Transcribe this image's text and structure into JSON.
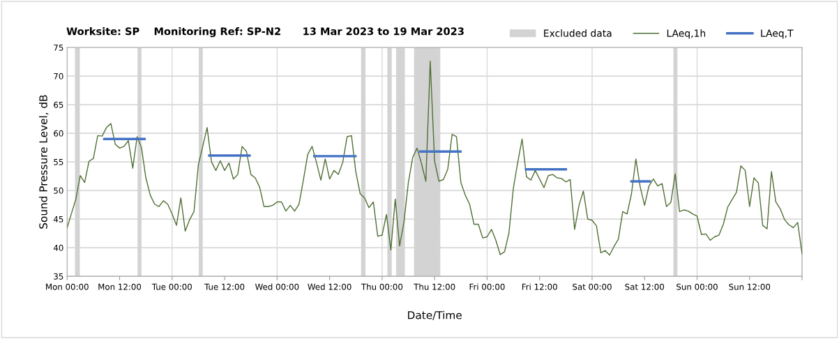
{
  "chart_data": {
    "type": "line",
    "title": "Worksite: SP    Monitoring Ref: SP-N2      13 Mar 2023 to 19 Mar 2023",
    "xlabel": "Date/Time",
    "ylabel": "Sound Pressure Level, dB",
    "xlim": [
      "2023-03-13T00:00",
      "2023-03-20T00:00"
    ],
    "ylim": [
      35,
      75
    ],
    "xticks": [
      {
        "value": "2023-03-13T00:00",
        "label": "Mon 00:00"
      },
      {
        "value": "2023-03-13T12:00",
        "label": "Mon 12:00"
      },
      {
        "value": "2023-03-14T00:00",
        "label": "Tue 00:00"
      },
      {
        "value": "2023-03-14T12:00",
        "label": "Tue 12:00"
      },
      {
        "value": "2023-03-15T00:00",
        "label": "Wed 00:00"
      },
      {
        "value": "2023-03-15T12:00",
        "label": "Wed 12:00"
      },
      {
        "value": "2023-03-16T00:00",
        "label": "Thu 00:00"
      },
      {
        "value": "2023-03-16T12:00",
        "label": "Thu 12:00"
      },
      {
        "value": "2023-03-17T00:00",
        "label": "Fri 00:00"
      },
      {
        "value": "2023-03-17T12:00",
        "label": "Fri 12:00"
      },
      {
        "value": "2023-03-18T00:00",
        "label": "Sat 00:00"
      },
      {
        "value": "2023-03-18T12:00",
        "label": "Sat 12:00"
      },
      {
        "value": "2023-03-19T00:00",
        "label": "Sun 00:00"
      },
      {
        "value": "2023-03-19T12:00",
        "label": "Sun 12:00"
      },
      {
        "value": "2023-03-20T00:00",
        "label": null
      }
    ],
    "yticks": [
      35,
      40,
      45,
      50,
      55,
      60,
      65,
      70,
      75
    ],
    "grid": true,
    "legend": "top right",
    "bands": [
      {
        "axis": "x",
        "from": "2023-03-13T01:48",
        "to": "2023-03-13T02:54",
        "label": "Excluded data",
        "color": "#d3d3d3"
      },
      {
        "axis": "x",
        "from": "2023-03-13T16:06",
        "to": "2023-03-13T17:00",
        "color": "#d3d3d3"
      },
      {
        "axis": "x",
        "from": "2023-03-14T06:06",
        "to": "2023-03-14T07:00",
        "color": "#d3d3d3"
      },
      {
        "axis": "x",
        "from": "2023-03-15T19:12",
        "to": "2023-03-15T20:12",
        "color": "#d3d3d3"
      },
      {
        "axis": "x",
        "from": "2023-03-16T01:12",
        "to": "2023-03-16T02:12",
        "color": "#d3d3d3"
      },
      {
        "axis": "x",
        "from": "2023-03-16T03:12",
        "to": "2023-03-16T05:12",
        "color": "#d3d3d3"
      },
      {
        "axis": "x",
        "from": "2023-03-16T07:18",
        "to": "2023-03-16T13:18",
        "color": "#d3d3d3"
      },
      {
        "axis": "x",
        "from": "2023-03-18T18:36",
        "to": "2023-03-18T19:30",
        "color": "#d3d3d3"
      }
    ],
    "series": [
      {
        "name": "LAeq,1h",
        "color": "#4f6f33",
        "x": [
          "2023-03-13T00:00",
          "2023-03-13T01:00",
          "2023-03-13T02:00",
          "2023-03-13T03:00",
          "2023-03-13T04:00",
          "2023-03-13T05:00",
          "2023-03-13T06:00",
          "2023-03-13T07:00",
          "2023-03-13T08:00",
          "2023-03-13T09:00",
          "2023-03-13T10:00",
          "2023-03-13T11:00",
          "2023-03-13T12:00",
          "2023-03-13T13:00",
          "2023-03-13T14:00",
          "2023-03-13T15:00",
          "2023-03-13T16:00",
          "2023-03-13T17:00",
          "2023-03-13T18:00",
          "2023-03-13T19:00",
          "2023-03-13T20:00",
          "2023-03-13T21:00",
          "2023-03-13T22:00",
          "2023-03-13T23:00",
          "2023-03-14T00:00",
          "2023-03-14T01:00",
          "2023-03-14T02:00",
          "2023-03-14T03:00",
          "2023-03-14T04:00",
          "2023-03-14T05:00",
          "2023-03-14T06:00",
          "2023-03-14T07:00",
          "2023-03-14T08:00",
          "2023-03-14T09:00",
          "2023-03-14T10:00",
          "2023-03-14T11:00",
          "2023-03-14T12:00",
          "2023-03-14T13:00",
          "2023-03-14T14:00",
          "2023-03-14T15:00",
          "2023-03-14T16:00",
          "2023-03-14T17:00",
          "2023-03-14T18:00",
          "2023-03-14T19:00",
          "2023-03-14T20:00",
          "2023-03-14T21:00",
          "2023-03-14T22:00",
          "2023-03-14T23:00",
          "2023-03-15T00:00",
          "2023-03-15T01:00",
          "2023-03-15T02:00",
          "2023-03-15T03:00",
          "2023-03-15T04:00",
          "2023-03-15T05:00",
          "2023-03-15T06:00",
          "2023-03-15T07:00",
          "2023-03-15T08:00",
          "2023-03-15T09:00",
          "2023-03-15T10:00",
          "2023-03-15T11:00",
          "2023-03-15T12:00",
          "2023-03-15T13:00",
          "2023-03-15T14:00",
          "2023-03-15T15:00",
          "2023-03-15T16:00",
          "2023-03-15T17:00",
          "2023-03-15T18:00",
          "2023-03-15T19:00",
          "2023-03-15T20:00",
          "2023-03-15T21:00",
          "2023-03-15T22:00",
          "2023-03-15T23:00",
          "2023-03-16T00:00",
          "2023-03-16T01:00",
          "2023-03-16T02:00",
          "2023-03-16T03:00",
          "2023-03-16T04:00",
          "2023-03-16T05:00",
          "2023-03-16T06:00",
          "2023-03-16T07:00",
          "2023-03-16T08:00",
          "2023-03-16T09:00",
          "2023-03-16T10:00",
          "2023-03-16T11:00",
          "2023-03-16T12:00",
          "2023-03-16T13:00",
          "2023-03-16T14:00",
          "2023-03-16T15:00",
          "2023-03-16T16:00",
          "2023-03-16T17:00",
          "2023-03-16T18:00",
          "2023-03-16T19:00",
          "2023-03-16T20:00",
          "2023-03-16T21:00",
          "2023-03-16T22:00",
          "2023-03-16T23:00",
          "2023-03-17T00:00",
          "2023-03-17T01:00",
          "2023-03-17T02:00",
          "2023-03-17T03:00",
          "2023-03-17T04:00",
          "2023-03-17T05:00",
          "2023-03-17T06:00",
          "2023-03-17T07:00",
          "2023-03-17T08:00",
          "2023-03-17T09:00",
          "2023-03-17T10:00",
          "2023-03-17T11:00",
          "2023-03-17T12:00",
          "2023-03-17T13:00",
          "2023-03-17T14:00",
          "2023-03-17T15:00",
          "2023-03-17T16:00",
          "2023-03-17T17:00",
          "2023-03-17T18:00",
          "2023-03-17T19:00",
          "2023-03-17T20:00",
          "2023-03-17T21:00",
          "2023-03-17T22:00",
          "2023-03-17T23:00",
          "2023-03-18T00:00",
          "2023-03-18T01:00",
          "2023-03-18T02:00",
          "2023-03-18T03:00",
          "2023-03-18T04:00",
          "2023-03-18T05:00",
          "2023-03-18T06:00",
          "2023-03-18T07:00",
          "2023-03-18T08:00",
          "2023-03-18T09:00",
          "2023-03-18T10:00",
          "2023-03-18T11:00",
          "2023-03-18T12:00",
          "2023-03-18T13:00",
          "2023-03-18T14:00",
          "2023-03-18T15:00",
          "2023-03-18T16:00",
          "2023-03-18T17:00",
          "2023-03-18T18:00",
          "2023-03-18T19:00",
          "2023-03-18T20:00",
          "2023-03-18T21:00",
          "2023-03-18T22:00",
          "2023-03-18T23:00",
          "2023-03-19T00:00",
          "2023-03-19T01:00",
          "2023-03-19T02:00",
          "2023-03-19T03:00",
          "2023-03-19T04:00",
          "2023-03-19T05:00",
          "2023-03-19T06:00",
          "2023-03-19T07:00",
          "2023-03-19T08:00",
          "2023-03-19T09:00",
          "2023-03-19T10:00",
          "2023-03-19T11:00",
          "2023-03-19T12:00",
          "2023-03-19T13:00",
          "2023-03-19T14:00",
          "2023-03-19T15:00",
          "2023-03-19T16:00",
          "2023-03-19T17:00",
          "2023-03-19T18:00",
          "2023-03-19T19:00",
          "2023-03-19T20:00",
          "2023-03-19T21:00",
          "2023-03-19T22:00",
          "2023-03-19T23:00",
          "2023-03-20T00:00"
        ],
        "values": [
          43.5,
          46,
          48.5,
          52.6,
          51.4,
          55.1,
          55.6,
          59.6,
          59.5,
          61,
          61.7,
          58.1,
          57.4,
          57.7,
          58.7,
          53.9,
          59.4,
          57.5,
          52.2,
          49.2,
          47.6,
          47.2,
          48.2,
          47.6,
          45.9,
          43.9,
          48.7,
          42.9,
          44.9,
          46.3,
          54.5,
          57.7,
          61,
          55,
          53.5,
          55.2,
          53.5,
          54.8,
          52,
          52.8,
          57.7,
          56.8,
          52.8,
          52.2,
          50.6,
          47.2,
          47.2,
          47.4,
          48,
          48,
          46.4,
          47.4,
          46.4,
          47.6,
          51.8,
          56.3,
          57.7,
          54.9,
          51.8,
          55.5,
          52,
          53.5,
          52.8,
          54.9,
          59.4,
          59.6,
          53.2,
          49.4,
          48.7,
          47,
          48,
          42,
          42.2,
          45.8,
          39.6,
          48.5,
          40.3,
          44.5,
          51.4,
          55.8,
          57.4,
          54.7,
          51.6,
          72.6,
          55.1,
          51.6,
          51.9,
          53.7,
          59.8,
          59.4,
          51.4,
          49.2,
          47.6,
          44.1,
          44.1,
          41.7,
          41.9,
          43.2,
          41.3,
          38.8,
          39.3,
          42.6,
          50.4,
          54.9,
          59,
          52.4,
          51.8,
          53.5,
          52,
          50.5,
          52.6,
          52.8,
          52.2,
          52.1,
          51.5,
          51.9,
          43.2,
          47.4,
          49.9,
          45,
          44.8,
          43.8,
          39.1,
          39.5,
          38.7,
          40.2,
          41.5,
          46.3,
          45.9,
          49.4,
          55.5,
          50.6,
          47.4,
          50.8,
          52,
          50.8,
          51.2,
          47.2,
          47.9,
          52.9,
          46.3,
          46.6,
          46.4,
          45.9,
          45.5,
          42.3,
          42.4,
          41.3,
          41.9,
          42.2,
          44.1,
          47.1,
          48.4,
          49.7,
          54.3,
          53.5,
          47.2,
          52.2,
          51.3,
          43.9,
          43.3,
          53.3,
          48,
          46.8,
          44.9,
          44,
          43.5,
          44.4,
          38.9
        ]
      },
      {
        "name": "LAeq,T",
        "color": "#4472c4",
        "x": [
          "2023-03-13T08:30",
          "2023-03-13T17:42",
          "2023-03-14T01:00",
          "2023-03-14T08:30",
          "2023-03-14T17:42",
          "2023-03-15T02:00",
          "2023-03-15T08:30",
          "2023-03-15T17:54",
          "2023-03-16T01:00",
          "2023-03-16T08:42",
          "2023-03-16T17:54",
          "2023-03-17T01:00",
          "2023-03-17T08:54",
          "2023-03-17T18:00",
          "2023-03-18T01:00",
          "2023-03-18T09:00",
          "2023-03-18T13:12"
        ],
        "values": [
          59,
          59,
          null,
          56.1,
          56.1,
          null,
          56,
          56,
          null,
          56.8,
          56.8,
          null,
          53.7,
          53.7,
          null,
          51.6,
          51.6
        ]
      }
    ]
  }
}
